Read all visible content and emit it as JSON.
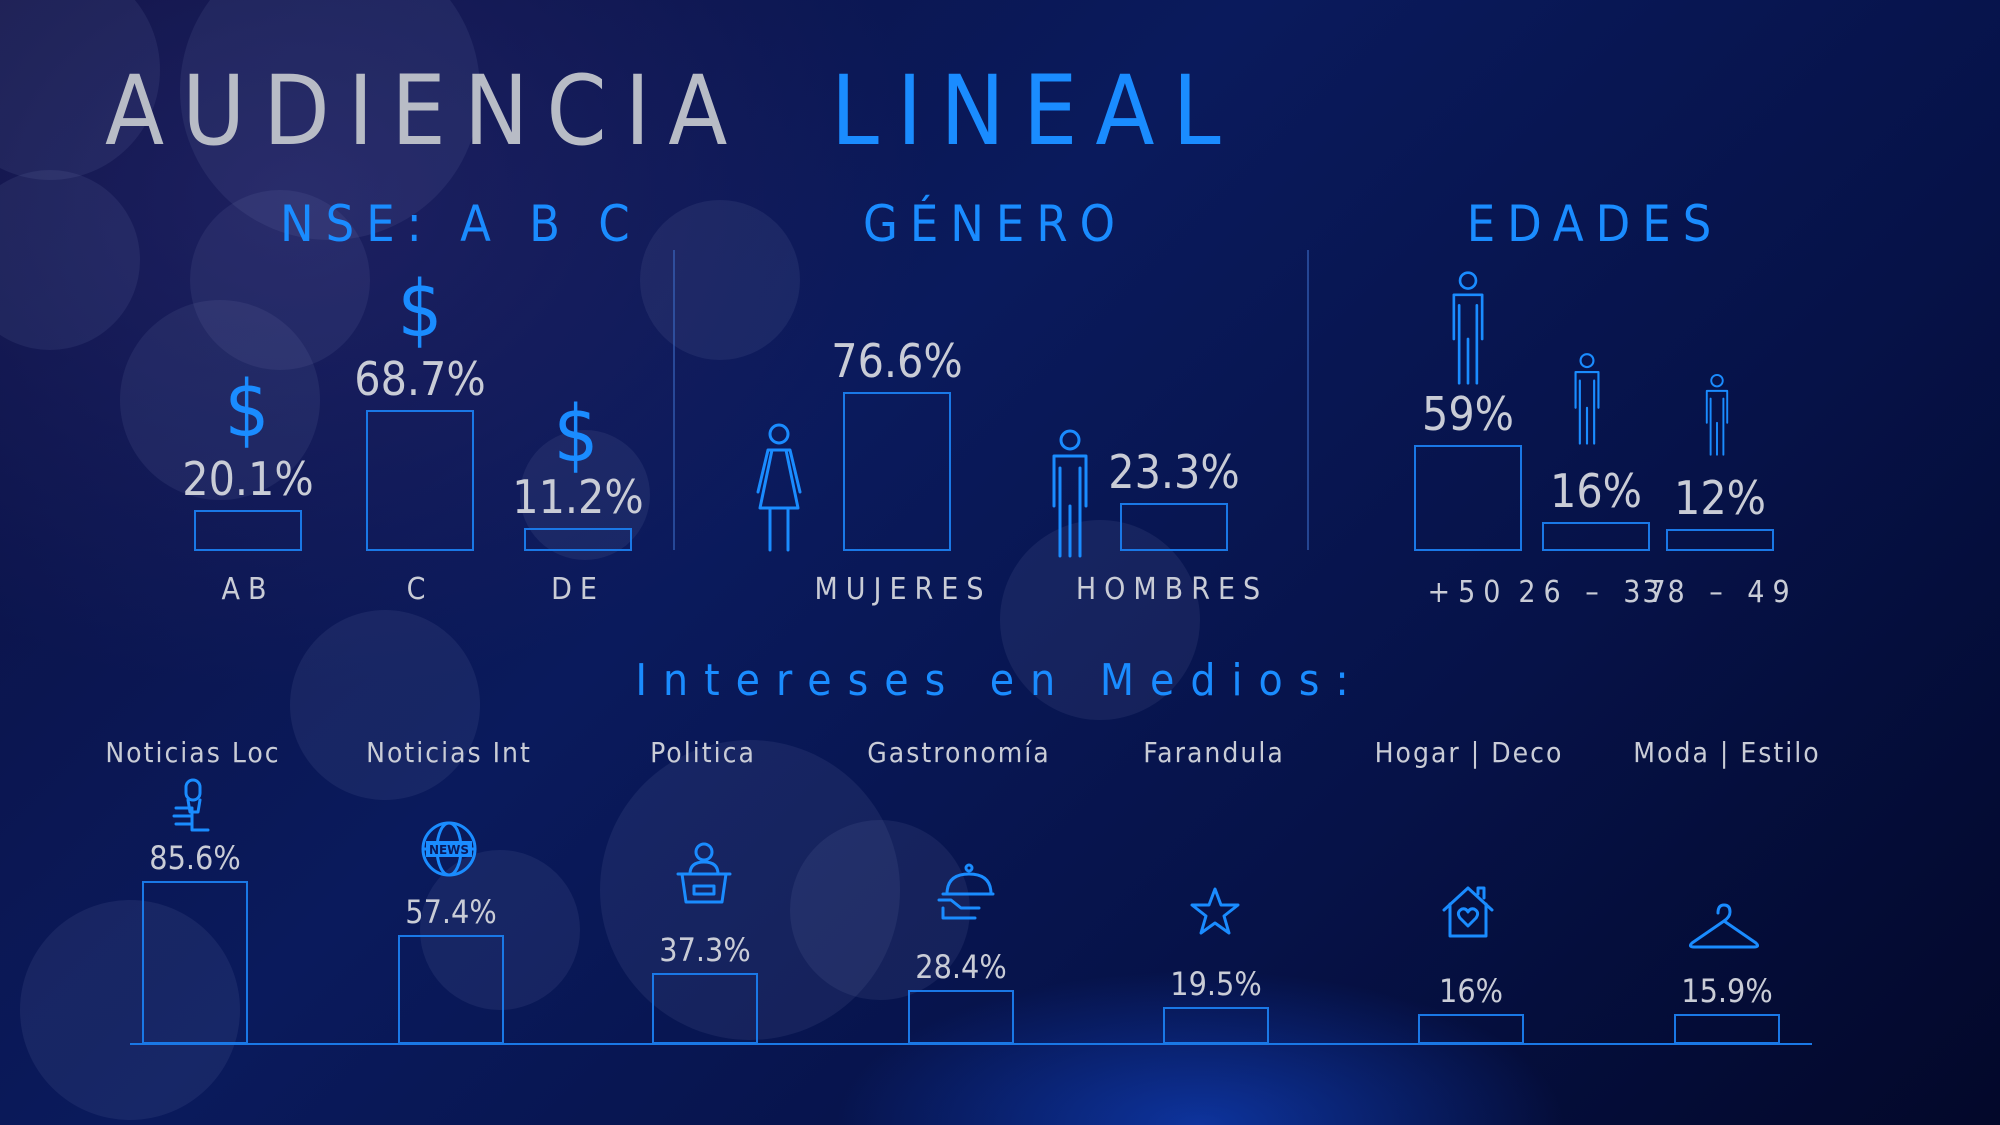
{
  "title": {
    "part1": "AUDIENCIA",
    "part2": "LINEAL"
  },
  "sections": {
    "nse": "NSE: A B C",
    "genero": "GÉNERO",
    "edades": "EDADES",
    "intereses": "Intereses en Medios:"
  },
  "icons": {
    "nse": "dollar-sign",
    "mujeres": "woman-icon",
    "hombres": "man-icon",
    "edades": "person-icon",
    "noticias_loc": "microphone-hand-icon",
    "noticias_int": "news-globe-icon",
    "politica": "podium-speaker-icon",
    "gastronomia": "cloche-icon",
    "farandula": "star-icon",
    "hogar": "house-heart-icon",
    "moda": "hanger-icon"
  },
  "colors": {
    "accent": "#1a8cff",
    "text": "#c9ccd6",
    "bar_border": "#1a78e6"
  },
  "chart_data": [
    {
      "type": "bar",
      "title": "NSE: A B C",
      "categories": [
        "AB",
        "C",
        "DE"
      ],
      "values": [
        20.1,
        68.7,
        11.2
      ],
      "labels": [
        "20.1%",
        "68.7%",
        "11.2%"
      ],
      "symbol": "$"
    },
    {
      "type": "bar",
      "title": "GÉNERO",
      "categories": [
        "MUJERES",
        "HOMBRES"
      ],
      "values": [
        76.6,
        23.3
      ],
      "labels": [
        "76.6%",
        "23.3%"
      ]
    },
    {
      "type": "bar",
      "title": "EDADES",
      "categories": [
        "+50",
        "26 – 37",
        "38 – 49"
      ],
      "values": [
        59,
        16,
        12
      ],
      "labels": [
        "59%",
        "16%",
        "12%"
      ]
    },
    {
      "type": "bar",
      "title": "Intereses en Medios:",
      "categories": [
        "Noticias Loc",
        "Noticias Int",
        "Politica",
        "Gastronomía",
        "Farandula",
        "Hogar | Deco",
        "Moda | Estilo"
      ],
      "values": [
        85.6,
        57.4,
        37.3,
        28.4,
        19.5,
        16,
        15.9
      ],
      "labels": [
        "85.6%",
        "57.4%",
        "37.3%",
        "28.4%",
        "19.5%",
        "16%",
        "15.9%"
      ]
    }
  ]
}
